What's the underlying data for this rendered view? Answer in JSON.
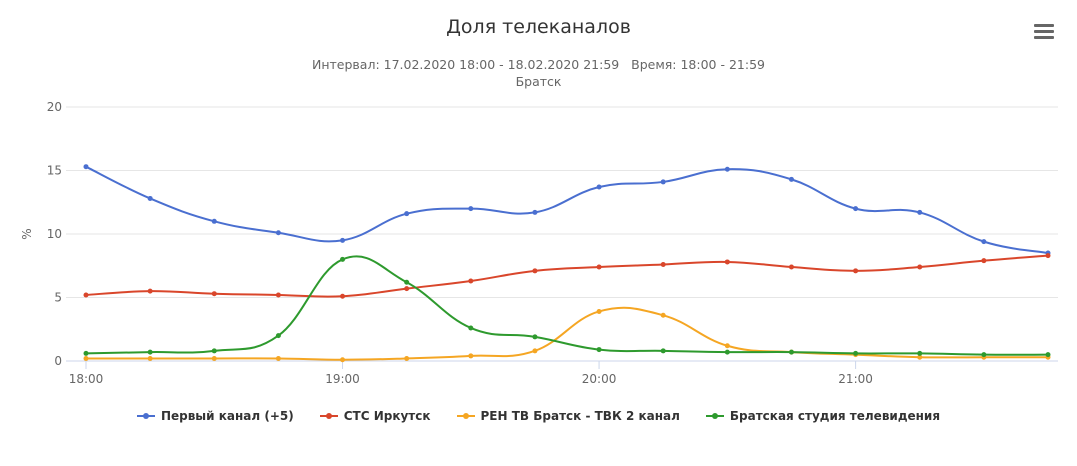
{
  "header": {
    "title": "Доля телеканалов",
    "subtitle": "Интервал: 17.02.2020 18:00 - 18.02.2020 21:59   Время: 18:00 - 21:59",
    "subtitle2": "Братск"
  },
  "menu": {
    "icon": "hamburger-menu-icon"
  },
  "chart_data": {
    "type": "line",
    "ylabel": "%",
    "ylim": [
      0,
      20
    ],
    "yticks": [
      "0",
      "5",
      "10",
      "15",
      "20"
    ],
    "xtick_labels": [
      "18:00",
      "19:00",
      "20:00",
      "21:00"
    ],
    "x": [
      "18:00",
      "18:15",
      "18:30",
      "18:45",
      "19:00",
      "19:15",
      "19:30",
      "19:45",
      "20:00",
      "20:15",
      "20:30",
      "20:45",
      "21:00",
      "21:15",
      "21:30",
      "21:45"
    ],
    "grid": true,
    "legend_position": "bottom",
    "series": [
      {
        "name": "Первый канал (+5)",
        "color": "#4a6fd0",
        "values": [
          15.3,
          12.8,
          11.0,
          10.1,
          9.5,
          11.6,
          12.0,
          11.7,
          13.7,
          14.1,
          15.1,
          14.3,
          12.0,
          11.7,
          9.4,
          8.5
        ]
      },
      {
        "name": "СТС Иркутск",
        "color": "#d9462b",
        "values": [
          5.2,
          5.5,
          5.3,
          5.2,
          5.1,
          5.7,
          6.3,
          7.1,
          7.4,
          7.6,
          7.8,
          7.4,
          7.1,
          7.4,
          7.9,
          8.3
        ]
      },
      {
        "name": "РЕН ТВ Братск - ТВК 2 канал",
        "color": "#f5a623",
        "values": [
          0.2,
          0.2,
          0.2,
          0.2,
          0.1,
          0.2,
          0.4,
          0.8,
          3.9,
          3.6,
          1.2,
          0.7,
          0.5,
          0.3,
          0.3,
          0.3
        ]
      },
      {
        "name": "Братская студия телевидения",
        "color": "#2e9a2e",
        "values": [
          0.6,
          0.7,
          0.8,
          2.0,
          8.0,
          6.2,
          2.6,
          1.9,
          0.9,
          0.8,
          0.7,
          0.7,
          0.6,
          0.6,
          0.5,
          0.5
        ]
      }
    ]
  }
}
